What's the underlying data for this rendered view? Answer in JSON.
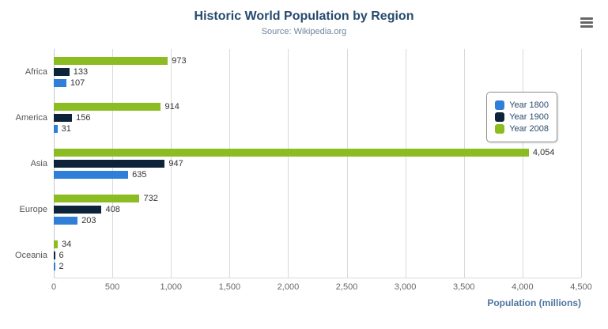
{
  "chart": {
    "title": "Historic World Population by Region",
    "subtitle": "Source: Wikipedia.org",
    "x_axis_title": "Population (millions)"
  },
  "menu": {
    "icon": "hamburger-icon"
  },
  "chart_data": {
    "type": "bar",
    "orientation": "horizontal",
    "title": "Historic World Population by Region",
    "subtitle": "Source: Wikipedia.org",
    "xlabel": "Population (millions)",
    "categories": [
      "Africa",
      "America",
      "Asia",
      "Europe",
      "Oceania"
    ],
    "series": [
      {
        "name": "Year 1800",
        "color": "#2f7ed8",
        "values": [
          107,
          31,
          635,
          203,
          2
        ]
      },
      {
        "name": "Year 1900",
        "color": "#0d233a",
        "values": [
          133,
          156,
          947,
          408,
          6
        ]
      },
      {
        "name": "Year 2008",
        "color": "#8bbc21",
        "values": [
          973,
          914,
          4054,
          732,
          34
        ]
      }
    ],
    "bar_display_order": [
      "Year 2008",
      "Year 1900",
      "Year 1800"
    ],
    "xlim": [
      0,
      4500
    ],
    "ticks": [
      0,
      500,
      1000,
      1500,
      2000,
      2500,
      3000,
      3500,
      4000,
      4500
    ],
    "tick_labels": [
      "0",
      "500",
      "1,000",
      "1,500",
      "2,000",
      "2,500",
      "3,000",
      "3,500",
      "4,000",
      "4,500"
    ],
    "grid": true,
    "legend_position": "right"
  }
}
